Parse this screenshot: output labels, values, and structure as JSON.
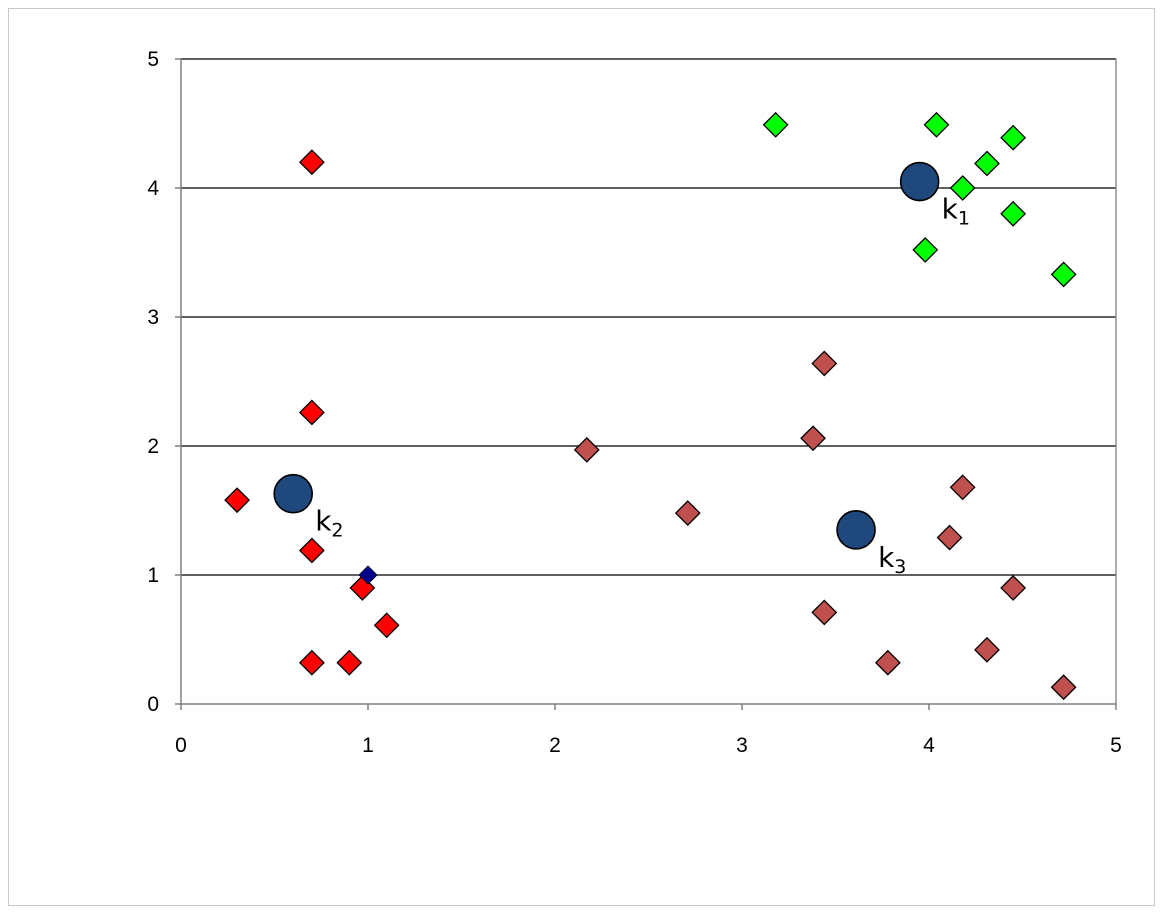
{
  "chart_data": {
    "type": "scatter",
    "title": "",
    "xlabel": "",
    "ylabel": "",
    "xlim": [
      0,
      5
    ],
    "ylim": [
      0,
      5
    ],
    "x_ticks": [
      0,
      1,
      2,
      3,
      4,
      5
    ],
    "y_ticks": [
      0,
      1,
      2,
      3,
      4,
      5
    ],
    "grid": "horizontal",
    "legend": "none",
    "series": [
      {
        "color": "#00ff00",
        "marker": "diamond",
        "points": [
          {
            "x": 3.18,
            "y": 4.49
          },
          {
            "x": 4.04,
            "y": 4.49
          },
          {
            "x": 4.45,
            "y": 4.39
          },
          {
            "x": 4.31,
            "y": 4.19
          },
          {
            "x": 4.18,
            "y": 4.0
          },
          {
            "x": 4.45,
            "y": 3.8
          },
          {
            "x": 3.98,
            "y": 3.52
          },
          {
            "x": 4.72,
            "y": 3.33
          }
        ]
      },
      {
        "color": "#ff0000",
        "marker": "diamond",
        "points": [
          {
            "x": 0.7,
            "y": 4.2
          },
          {
            "x": 0.7,
            "y": 2.26
          },
          {
            "x": 0.3,
            "y": 1.58
          },
          {
            "x": 0.7,
            "y": 1.19
          },
          {
            "x": 0.97,
            "y": 0.9
          },
          {
            "x": 1.1,
            "y": 0.61
          },
          {
            "x": 0.7,
            "y": 0.32
          },
          {
            "x": 0.9,
            "y": 0.32
          }
        ]
      },
      {
        "color": "#c0504d",
        "marker": "diamond",
        "points": [
          {
            "x": 2.17,
            "y": 1.97
          },
          {
            "x": 2.71,
            "y": 1.48
          },
          {
            "x": 3.44,
            "y": 2.64
          },
          {
            "x": 3.38,
            "y": 2.06
          },
          {
            "x": 4.18,
            "y": 1.68
          },
          {
            "x": 4.11,
            "y": 1.29
          },
          {
            "x": 4.45,
            "y": 0.9
          },
          {
            "x": 3.44,
            "y": 0.71
          },
          {
            "x": 4.31,
            "y": 0.42
          },
          {
            "x": 3.78,
            "y": 0.32
          },
          {
            "x": 4.72,
            "y": 0.13
          }
        ]
      },
      {
        "color": "#00008b",
        "marker": "diamond-small",
        "points": [
          {
            "x": 1.0,
            "y": 1.0
          }
        ]
      },
      {
        "color": "#1f497d",
        "marker": "circle",
        "points": [
          {
            "x": 3.95,
            "y": 4.05
          },
          {
            "x": 0.6,
            "y": 1.63
          },
          {
            "x": 3.61,
            "y": 1.35
          }
        ]
      }
    ],
    "annotations": [
      {
        "base": "k",
        "sub": "1",
        "x": 3.95,
        "y": 4.05
      },
      {
        "base": "k",
        "sub": "2",
        "x": 0.6,
        "y": 1.63
      },
      {
        "base": "k",
        "sub": "3",
        "x": 3.61,
        "y": 1.35
      }
    ]
  }
}
